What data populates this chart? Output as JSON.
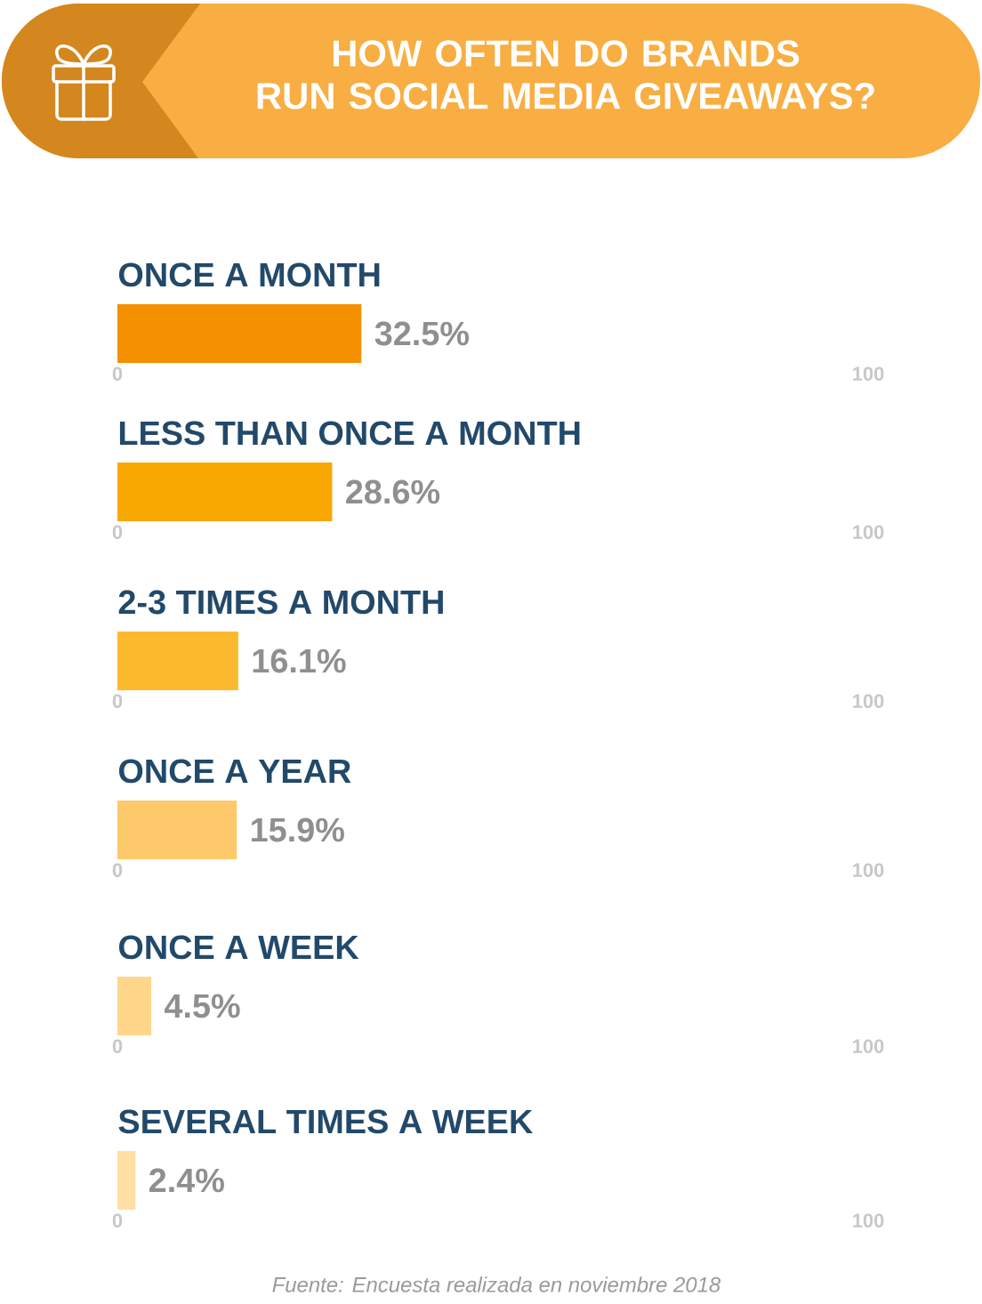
{
  "chart_data": [
    {
      "type": "bar",
      "orientation": "horizontal",
      "title": "HOW OFTEN DO BRANDS RUN SOCIAL MEDIA GIVEAWAYS?",
      "categories": [
        "ONCE A MONTH"
      ],
      "values": [
        32.5
      ],
      "value_labels": [
        "32.5%"
      ],
      "color": "#f59000",
      "xlim": [
        0,
        100
      ],
      "xticks": [
        0,
        100
      ]
    },
    {
      "type": "bar",
      "orientation": "horizontal",
      "categories": [
        "LESS THAN ONCE A MONTH"
      ],
      "values": [
        28.6
      ],
      "value_labels": [
        "28.6%"
      ],
      "color": "#f8a800",
      "xlim": [
        0,
        100
      ],
      "xticks": [
        0,
        100
      ]
    },
    {
      "type": "bar",
      "orientation": "horizontal",
      "categories": [
        "2-3 TIMES A MONTH"
      ],
      "values": [
        16.1
      ],
      "value_labels": [
        "16.1%"
      ],
      "color": "#fdb92e",
      "xlim": [
        0,
        100
      ],
      "xticks": [
        0,
        100
      ]
    },
    {
      "type": "bar",
      "orientation": "horizontal",
      "categories": [
        "ONCE A YEAR"
      ],
      "values": [
        15.9
      ],
      "value_labels": [
        "15.9%"
      ],
      "color": "#fec96a",
      "xlim": [
        0,
        100
      ],
      "xticks": [
        0,
        100
      ]
    },
    {
      "type": "bar",
      "orientation": "horizontal",
      "categories": [
        "ONCE A WEEK"
      ],
      "values": [
        4.5
      ],
      "value_labels": [
        "4.5%"
      ],
      "color": "#ffd68a",
      "xlim": [
        0,
        100
      ],
      "xticks": [
        0,
        100
      ]
    },
    {
      "type": "bar",
      "orientation": "horizontal",
      "categories": [
        "SEVERAL TIMES A WEEK"
      ],
      "values": [
        2.4
      ],
      "value_labels": [
        "2.4%"
      ],
      "color": "#ffe0a4",
      "xlim": [
        0,
        100
      ],
      "xticks": [
        0,
        100
      ],
      "annotations": [
        "Fuente: Encuesta realizada en noviembre 2018"
      ]
    }
  ]
}
